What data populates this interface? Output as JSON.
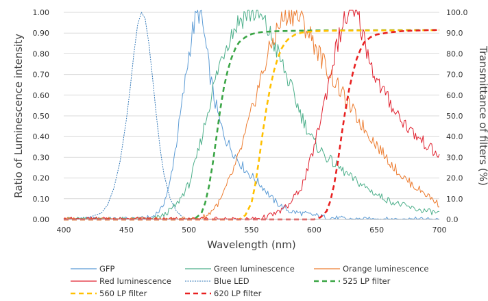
{
  "chart_data": {
    "type": "line",
    "xlabel": "Wavelength (nm)",
    "ylabel": "Ratio of Luminescence intensity",
    "y2label": "Transmittance of filters (%)",
    "xlim": [
      400,
      700
    ],
    "ylim": [
      0,
      1
    ],
    "y2lim": [
      0,
      100
    ],
    "x_ticks": [
      "400",
      "450",
      "500",
      "550",
      "600",
      "650",
      "700"
    ],
    "y_ticks": [
      "0.00",
      "0.10",
      "0.20",
      "0.30",
      "0.40",
      "0.50",
      "0.60",
      "0.70",
      "0.80",
      "0.90",
      "1.00"
    ],
    "y2_ticks": [
      "0.0",
      "10.0",
      "20.0",
      "30.0",
      "40.0",
      "50.0",
      "60.0",
      "70.0",
      "80.0",
      "90.0",
      "100.0"
    ],
    "grid": "horizontal",
    "legend_position": "bottom",
    "series": [
      {
        "name": "GFP",
        "color": "#5b9bd5",
        "style": "solid",
        "axis": "left",
        "x": [
          400,
          460,
          470,
          478,
          484,
          490,
          495,
          500,
          503,
          506,
          508,
          510,
          513,
          516,
          520,
          525,
          530,
          535,
          540,
          545,
          550,
          555,
          560,
          565,
          570,
          575,
          580,
          590,
          600,
          610,
          620,
          630,
          700
        ],
        "y": [
          0.0,
          0.0,
          0.01,
          0.05,
          0.15,
          0.37,
          0.58,
          0.8,
          0.91,
          0.98,
          1.0,
          0.97,
          0.86,
          0.73,
          0.59,
          0.46,
          0.38,
          0.33,
          0.28,
          0.24,
          0.21,
          0.18,
          0.15,
          0.11,
          0.08,
          0.06,
          0.04,
          0.03,
          0.02,
          0.01,
          0.005,
          0.0,
          0.0
        ]
      },
      {
        "name": "Green luminescence",
        "color": "#4caf8a",
        "style": "solid",
        "axis": "left",
        "x": [
          400,
          470,
          480,
          490,
          500,
          505,
          510,
          515,
          520,
          525,
          530,
          535,
          540,
          545,
          550,
          555,
          560,
          565,
          570,
          575,
          580,
          585,
          590,
          595,
          600,
          610,
          620,
          630,
          640,
          650,
          660,
          670,
          680,
          690,
          700
        ],
        "y": [
          0.0,
          0.0,
          0.02,
          0.07,
          0.17,
          0.27,
          0.39,
          0.52,
          0.65,
          0.76,
          0.85,
          0.91,
          0.96,
          0.99,
          1.0,
          0.99,
          0.95,
          0.89,
          0.82,
          0.74,
          0.66,
          0.58,
          0.5,
          0.43,
          0.37,
          0.3,
          0.25,
          0.2,
          0.16,
          0.12,
          0.09,
          0.07,
          0.05,
          0.04,
          0.03
        ]
      },
      {
        "name": "Orange luminescence",
        "color": "#ed7d31",
        "style": "solid",
        "axis": "left",
        "x": [
          400,
          505,
          515,
          525,
          530,
          535,
          540,
          545,
          550,
          555,
          560,
          565,
          570,
          575,
          580,
          585,
          590,
          595,
          600,
          605,
          610,
          620,
          630,
          640,
          650,
          660,
          670,
          680,
          690,
          700
        ],
        "y": [
          0.0,
          0.0,
          0.02,
          0.09,
          0.16,
          0.23,
          0.31,
          0.41,
          0.52,
          0.63,
          0.73,
          0.83,
          0.91,
          0.97,
          1.0,
          0.99,
          0.96,
          0.91,
          0.85,
          0.79,
          0.73,
          0.63,
          0.53,
          0.44,
          0.36,
          0.28,
          0.21,
          0.16,
          0.12,
          0.07
        ]
      },
      {
        "name": "Red luminescence",
        "color": "#e0202e",
        "style": "solid",
        "axis": "left",
        "x": [
          400,
          550,
          560,
          570,
          580,
          590,
          595,
          600,
          605,
          610,
          615,
          620,
          625,
          630,
          633,
          636,
          640,
          645,
          650,
          660,
          670,
          680,
          690,
          700
        ],
        "y": [
          0.0,
          0.0,
          0.01,
          0.03,
          0.07,
          0.16,
          0.24,
          0.35,
          0.48,
          0.62,
          0.76,
          0.88,
          0.97,
          1.0,
          0.99,
          0.96,
          0.87,
          0.76,
          0.67,
          0.57,
          0.48,
          0.41,
          0.36,
          0.3
        ]
      },
      {
        "name": "Blue LED",
        "color": "#2e75b6",
        "style": "dotted",
        "axis": "left",
        "x": [
          400,
          420,
          430,
          435,
          440,
          445,
          450,
          453,
          456,
          459,
          462,
          465,
          468,
          471,
          474,
          477,
          480,
          485,
          490,
          495,
          500
        ],
        "y": [
          0.0,
          0.01,
          0.03,
          0.07,
          0.15,
          0.28,
          0.48,
          0.63,
          0.8,
          0.94,
          1.0,
          0.97,
          0.85,
          0.68,
          0.5,
          0.34,
          0.22,
          0.1,
          0.04,
          0.01,
          0.0
        ]
      },
      {
        "name": "525 LP filter",
        "color": "#3aa545",
        "style": "dashed",
        "axis": "right",
        "x": [
          400,
          500,
          505,
          510,
          513,
          516,
          519,
          522,
          525,
          528,
          531,
          534,
          537,
          540,
          545,
          550,
          555,
          560,
          570,
          600,
          700
        ],
        "y": [
          0.0,
          0.0,
          0.5,
          3.0,
          8.0,
          16.0,
          27.0,
          40.0,
          53.0,
          64.0,
          72.0,
          78.0,
          82.5,
          85.5,
          88.0,
          89.5,
          90.2,
          90.6,
          90.9,
          91.3,
          91.5
        ]
      },
      {
        "name": "560 LP filter",
        "color": "#ffc000",
        "style": "dashed",
        "axis": "right",
        "x": [
          400,
          540,
          545,
          550,
          553,
          556,
          559,
          562,
          565,
          568,
          571,
          574,
          577,
          580,
          585,
          590,
          600,
          620,
          700
        ],
        "y": [
          0.0,
          0.0,
          2.0,
          8.0,
          17.0,
          29.0,
          42.0,
          54.0,
          64.0,
          72.0,
          78.0,
          82.5,
          85.5,
          87.5,
          89.3,
          90.2,
          90.9,
          91.2,
          91.4
        ]
      },
      {
        "name": "620 LP filter",
        "color": "#e82020",
        "style": "dashed",
        "axis": "right",
        "x": [
          400,
          600,
          605,
          610,
          613,
          616,
          619,
          622,
          625,
          628,
          631,
          634,
          637,
          640,
          645,
          650,
          660,
          670,
          680,
          690,
          700
        ],
        "y": [
          0.0,
          0.0,
          1.0,
          4.0,
          9.0,
          17.0,
          28.0,
          41.0,
          53.0,
          63.0,
          71.0,
          77.5,
          82.0,
          85.5,
          88.0,
          89.3,
          90.3,
          90.9,
          91.2,
          91.4,
          91.5
        ]
      }
    ]
  }
}
